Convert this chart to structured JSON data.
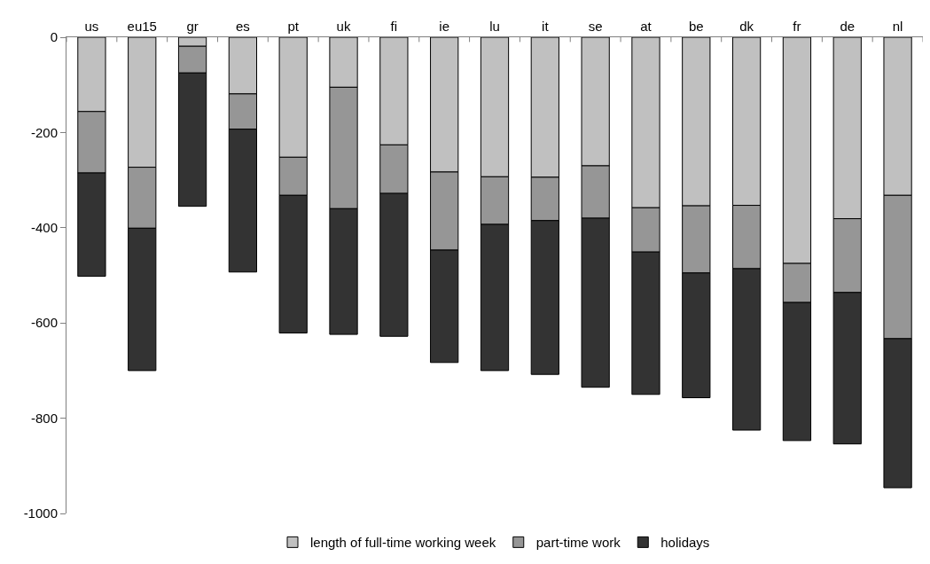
{
  "chart_data": {
    "type": "bar",
    "stacked": true,
    "categories": [
      "us",
      "eu15",
      "gr",
      "es",
      "pt",
      "uk",
      "fi",
      "ie",
      "lu",
      "it",
      "se",
      "at",
      "be",
      "dk",
      "fr",
      "de",
      "nl"
    ],
    "series": [
      {
        "name": "length of full-time working week",
        "color": "#c0c0c0",
        "values": [
          -156,
          -273,
          -19,
          -119,
          -252,
          -105,
          -226,
          -283,
          -293,
          -294,
          -270,
          -358,
          -354,
          -353,
          -475,
          -381,
          -332
        ]
      },
      {
        "name": "part-time work",
        "color": "#969696",
        "values": [
          -129,
          -128,
          -56,
          -74,
          -80,
          -255,
          -102,
          -164,
          -100,
          -91,
          -110,
          -93,
          -141,
          -133,
          -82,
          -155,
          -301
        ]
      },
      {
        "name": "holidays",
        "color": "#333333",
        "values": [
          -217,
          -299,
          -280,
          -300,
          -289,
          -264,
          -300,
          -236,
          -307,
          -323,
          -355,
          -299,
          -262,
          -339,
          -290,
          -318,
          -313
        ]
      }
    ],
    "ylim": [
      -1000,
      0
    ],
    "yticks": [
      -1000,
      -800,
      -600,
      -400,
      -200,
      0
    ],
    "legend": "bottom"
  }
}
